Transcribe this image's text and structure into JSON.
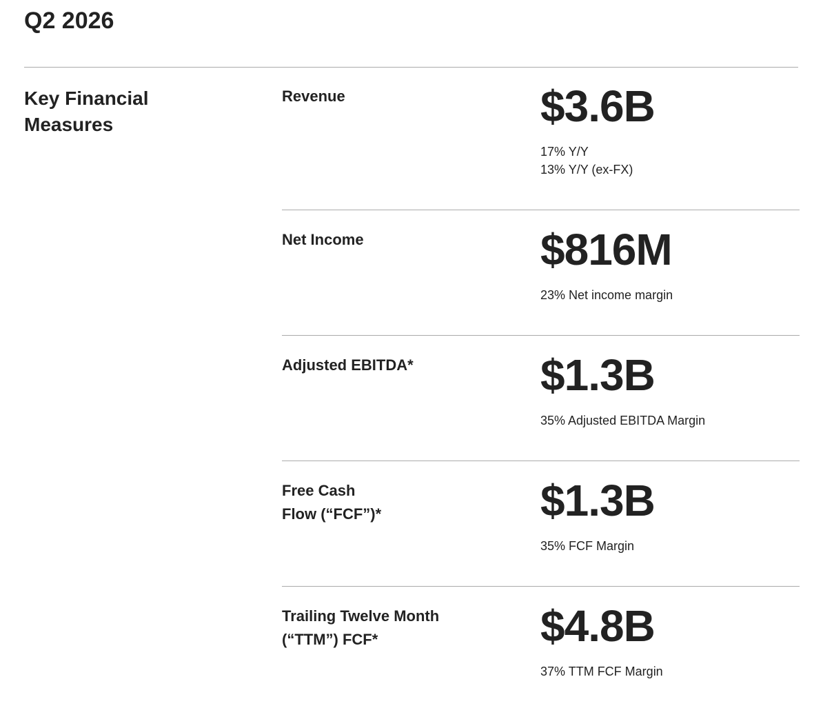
{
  "header": {
    "title": "Q2 2026"
  },
  "section": {
    "title_lines": [
      "Key Financial",
      "Measures"
    ]
  },
  "metrics": [
    {
      "label_lines": [
        "Revenue"
      ],
      "value": "$3.6B",
      "notes": [
        "17% Y/Y",
        "13% Y/Y (ex-FX)"
      ]
    },
    {
      "label_lines": [
        "Net Income"
      ],
      "value": "$816M",
      "notes": [
        "23% Net income margin"
      ]
    },
    {
      "label_lines": [
        "Adjusted EBITDA*"
      ],
      "value": "$1.3B",
      "notes": [
        "35% Adjusted EBITDA Margin"
      ]
    },
    {
      "label_lines": [
        "Free Cash",
        "Flow (“FCF”)*"
      ],
      "value": "$1.3B",
      "notes": [
        "35% FCF Margin"
      ]
    },
    {
      "label_lines": [
        "Trailing Twelve Month",
        "(“TTM”) FCF*"
      ],
      "value": "$4.8B",
      "notes": [
        "37% TTM FCF Margin"
      ]
    }
  ]
}
